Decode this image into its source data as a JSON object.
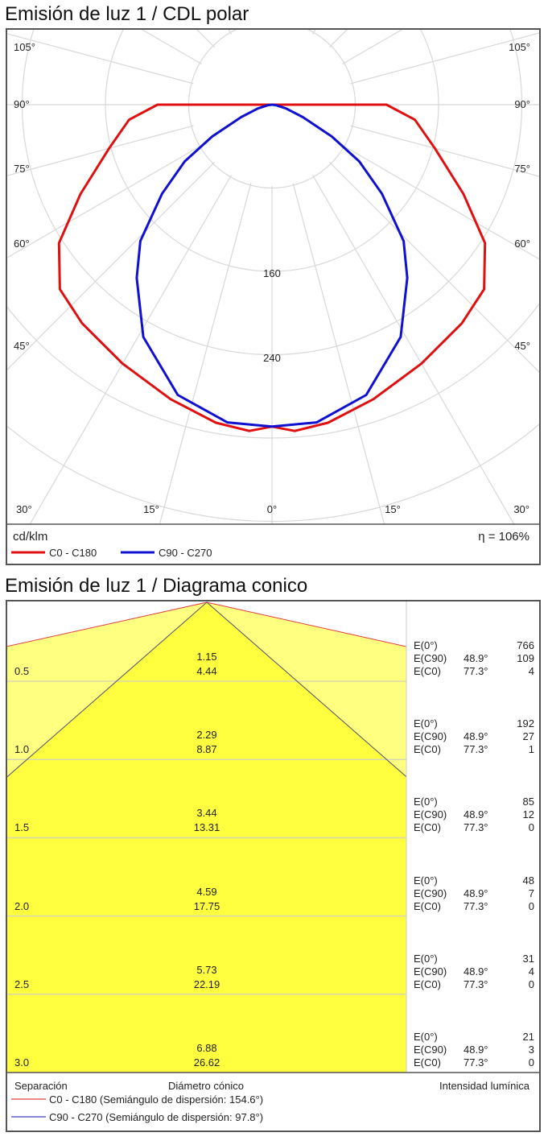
{
  "polar": {
    "title": "Emisión de luz 1 / CDL polar",
    "unit": "cd/klm",
    "efficiency": "η = 106%",
    "angle_labels_left": [
      "105°",
      "90°",
      "75°",
      "60°",
      "45°",
      "30°"
    ],
    "angle_labels_right": [
      "105°",
      "90°",
      "75°",
      "60°",
      "45°",
      "30°"
    ],
    "angle_labels_bottom": [
      "30°",
      "15°",
      "0°",
      "15°",
      "30°"
    ],
    "radial_labels": [
      "160",
      "240"
    ],
    "legend": [
      {
        "name": "C0 - C180",
        "color": "#e01010"
      },
      {
        "name": "C90 - C270",
        "color": "#1010d0"
      }
    ]
  },
  "chart_data": [
    {
      "type": "polar",
      "title": "Emisión de luz 1 / CDL polar",
      "unit": "cd/klm",
      "radial_ticks": [
        80,
        160,
        240,
        320,
        400,
        480
      ],
      "angle_step_labels": 15,
      "grid": true,
      "series": [
        {
          "name": "C0 - C180",
          "color": "#e01010",
          "angles": [
            0,
            4,
            10,
            19,
            30,
            41,
            49,
            57,
            65,
            75,
            84,
            90
          ],
          "values": [
            309,
            314,
            310,
            299,
            287,
            278,
            270,
            244,
            203,
            162,
            138,
            110
          ]
        },
        {
          "name": "C90 - C270",
          "color": "#1010d0",
          "angles": [
            0,
            8,
            18,
            29,
            38,
            44,
            51,
            57,
            62,
            68,
            75,
            82,
            90
          ],
          "values": [
            309,
            308,
            293,
            255,
            211,
            182,
            136,
            100,
            65,
            32,
            14,
            4,
            0
          ]
        }
      ]
    },
    {
      "type": "table",
      "title": "Emisión de luz 1 / Diagrama conico",
      "columns": [
        "Separación",
        "Diámetro cónico",
        "Intensidad lumínica"
      ],
      "legend": [
        {
          "name": "C0 - C180 (Semiángulo de dispersión: 154.6°)",
          "color": "#e04040"
        },
        {
          "name": "C90 - C270 (Semiángulo de dispersión: 97.8°)",
          "color": "#4040c0"
        }
      ],
      "rows": [
        {
          "sep": "0.5",
          "d1": "1.15",
          "d2": "4.44",
          "e0": "766",
          "e90": "109",
          "e0c": "4"
        },
        {
          "sep": "1.0",
          "d1": "2.29",
          "d2": "8.87",
          "e0": "192",
          "e90": "27",
          "e0c": "1"
        },
        {
          "sep": "1.5",
          "d1": "3.44",
          "d2": "13.31",
          "e0": "85",
          "e90": "12",
          "e0c": "0"
        },
        {
          "sep": "2.0",
          "d1": "4.59",
          "d2": "17.75",
          "e0": "48",
          "e90": "7",
          "e0c": "0"
        },
        {
          "sep": "2.5",
          "d1": "5.73",
          "d2": "22.19",
          "e0": "31",
          "e90": "4",
          "e0c": "0"
        },
        {
          "sep": "3.0",
          "d1": "6.88",
          "d2": "26.62",
          "e0": "21",
          "e90": "3",
          "e0c": "0"
        }
      ],
      "labels": {
        "e0": "E(0°)",
        "e90": "E(C90)",
        "e0c": "E(C0)",
        "a90": "48.9°",
        "a0": "77.3°"
      }
    }
  ]
}
